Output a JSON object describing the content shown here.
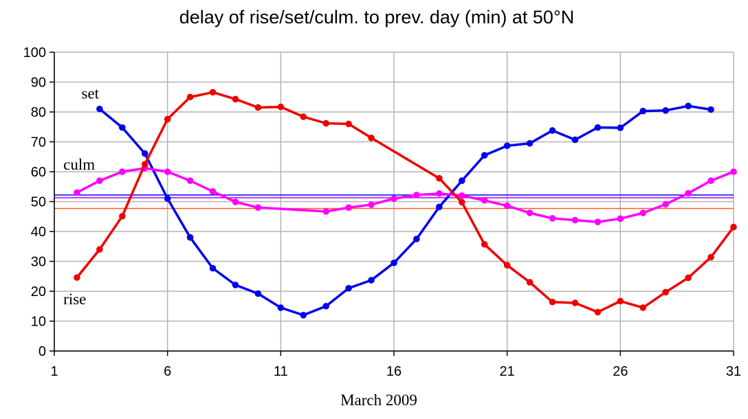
{
  "chart_data": {
    "type": "line",
    "title": "delay of rise/set/culm. to prev. day (min) at 50°N",
    "xlabel": "March 2009",
    "ylabel": "",
    "xlim": [
      1,
      31
    ],
    "ylim": [
      0,
      100
    ],
    "x_ticks": [
      1,
      6,
      11,
      16,
      21,
      26,
      31
    ],
    "y_ticks": [
      0,
      10,
      20,
      30,
      40,
      50,
      60,
      70,
      80,
      90,
      100
    ],
    "grid": true,
    "series": [
      {
        "name": "set",
        "color": "#0000ee",
        "points": [
          [
            3,
            81
          ],
          [
            4,
            74.8
          ],
          [
            5,
            66.1
          ],
          [
            6,
            51
          ],
          [
            7,
            38
          ],
          [
            8,
            27.7
          ],
          [
            9,
            22.1
          ],
          [
            10,
            19.2
          ],
          [
            11,
            14.5
          ],
          [
            12,
            12
          ],
          [
            13,
            15
          ],
          [
            14,
            21
          ],
          [
            15,
            23.7
          ],
          [
            16,
            29.5
          ],
          [
            17,
            37.5
          ],
          [
            18,
            48.2
          ],
          [
            19,
            57
          ],
          [
            20,
            65.5
          ],
          [
            21,
            68.7
          ],
          [
            22,
            69.5
          ],
          [
            23,
            73.8
          ],
          [
            24,
            70.7
          ],
          [
            25,
            74.8
          ],
          [
            26,
            74.7
          ],
          [
            27,
            80.3
          ],
          [
            28,
            80.5
          ],
          [
            29,
            82
          ],
          [
            30,
            80.8
          ]
        ],
        "mean": 52.2,
        "mean_color": "#0000ee"
      },
      {
        "name": "culm",
        "color": "#ff00ff",
        "points": [
          [
            2,
            53
          ],
          [
            3,
            57
          ],
          [
            4,
            60
          ],
          [
            5,
            61.2
          ],
          [
            6,
            60
          ],
          [
            7,
            57
          ],
          [
            8,
            53.4
          ],
          [
            9,
            49.9
          ],
          [
            10,
            48
          ],
          [
            13,
            46.7
          ],
          [
            14,
            48
          ],
          [
            15,
            49
          ],
          [
            16,
            51
          ],
          [
            17,
            52.2
          ],
          [
            18,
            52.7
          ],
          [
            19,
            52
          ],
          [
            20,
            50.4
          ],
          [
            21,
            48.6
          ],
          [
            22,
            46.2
          ],
          [
            23,
            44.4
          ],
          [
            24,
            43.8
          ],
          [
            25,
            43.2
          ],
          [
            26,
            44.3
          ],
          [
            27,
            46.2
          ],
          [
            28,
            49.1
          ],
          [
            29,
            52.8
          ],
          [
            30,
            57
          ],
          [
            31,
            60
          ]
        ],
        "mean": 51.3,
        "mean_color": "#aa00ff"
      },
      {
        "name": "rise",
        "color": "#ee0000",
        "points": [
          [
            2,
            24.6
          ],
          [
            3,
            34
          ],
          [
            4,
            45.1
          ],
          [
            5,
            62.5
          ],
          [
            6,
            77.6
          ],
          [
            7,
            85
          ],
          [
            8,
            86.6
          ],
          [
            9,
            84.3
          ],
          [
            10,
            81.5
          ],
          [
            11,
            81.7
          ],
          [
            12,
            78.4
          ],
          [
            13,
            76.2
          ],
          [
            14,
            76
          ],
          [
            15,
            71.3
          ],
          [
            18,
            57.8
          ],
          [
            19,
            49.8
          ],
          [
            20,
            35.7
          ],
          [
            21,
            28.7
          ],
          [
            22,
            23
          ],
          [
            23,
            16.4
          ],
          [
            24,
            16.1
          ],
          [
            25,
            13
          ],
          [
            26,
            16.7
          ],
          [
            27,
            14.5
          ],
          [
            28,
            19.7
          ],
          [
            29,
            24.5
          ],
          [
            30,
            31.4
          ],
          [
            31,
            41.5
          ]
        ],
        "mean": 47.7,
        "mean_color": "#ff5a1f"
      }
    ],
    "series_labels": [
      {
        "text": "set",
        "x": 2.2,
        "y": 84.5
      },
      {
        "text": "culm",
        "x": 1.4,
        "y": 60.7
      },
      {
        "text": "rise",
        "x": 1.4,
        "y": 15.6
      }
    ]
  }
}
